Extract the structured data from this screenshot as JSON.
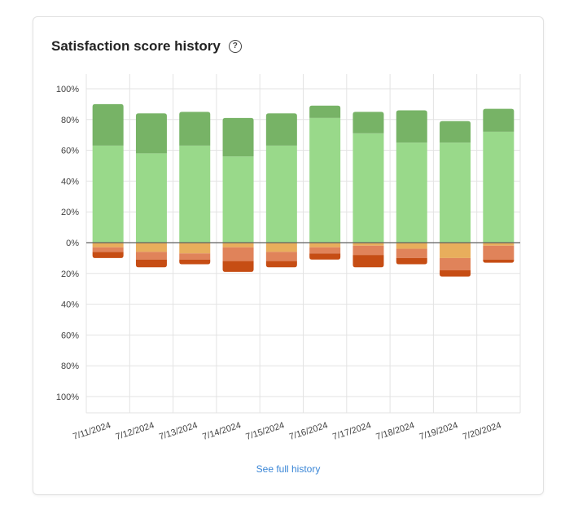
{
  "card": {
    "title": "Satisfaction score history",
    "link_label": "See full history"
  },
  "icons": {
    "help": "question-circle-icon"
  },
  "colors": {
    "very_satisfied": "#77b366",
    "satisfied": "#99d98a",
    "neutral": "#e8ae5c",
    "dissatisfied": "#e0835a",
    "very_dissatisfied": "#c64d14",
    "grid": "#e3e3e3",
    "zero_line": "#616161",
    "tick_text": "#424242"
  },
  "chart_data": {
    "type": "bar",
    "stacked": true,
    "diverging": true,
    "categories": [
      "7/11/2024",
      "7/12/2024",
      "7/13/2024",
      "7/14/2024",
      "7/15/2024",
      "7/16/2024",
      "7/17/2024",
      "7/18/2024",
      "7/19/2024",
      "7/20/2024"
    ],
    "ylim": [
      -100,
      100
    ],
    "ytick_labels": [
      "100%",
      "80%",
      "60%",
      "40%",
      "20%",
      "0%",
      "20%",
      "40%",
      "60%",
      "80%",
      "100%"
    ],
    "ytick_values": [
      100,
      80,
      60,
      40,
      20,
      0,
      -20,
      -40,
      -60,
      -80,
      -100
    ],
    "grid": true,
    "series": [
      {
        "key": "satisfied",
        "direction": "positive",
        "values": [
          63,
          58,
          63,
          56,
          63,
          81,
          71,
          65,
          65,
          72
        ]
      },
      {
        "key": "very_satisfied",
        "direction": "positive",
        "values": [
          27,
          26,
          22,
          25,
          21,
          8,
          14,
          21,
          14,
          15
        ]
      },
      {
        "key": "neutral",
        "direction": "negative",
        "values": [
          3,
          6,
          7,
          3,
          6,
          3,
          2,
          4,
          10,
          2
        ]
      },
      {
        "key": "dissatisfied",
        "direction": "negative",
        "values": [
          3,
          5,
          4,
          9,
          6,
          4,
          6,
          6,
          8,
          9
        ]
      },
      {
        "key": "very_dissatisfied",
        "direction": "negative",
        "values": [
          4,
          5,
          3,
          7,
          4,
          4,
          8,
          4,
          4,
          2
        ]
      }
    ]
  }
}
